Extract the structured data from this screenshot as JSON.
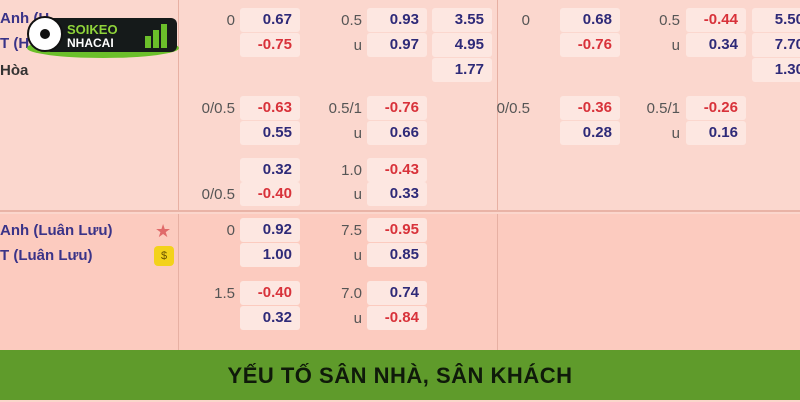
{
  "teams_top": {
    "home": "Anh (H",
    "away": "T (H",
    "draw": "Hòa"
  },
  "teams_bottom": {
    "home": "Anh (Luân Lưu)",
    "away": "T (Luân Lưu)"
  },
  "logo": {
    "text": "SOIKEO NHACAI .COM.CO"
  },
  "icons": {
    "favorite": "star-icon",
    "coin": "coin-icon"
  },
  "colors": {
    "positive": "#2e2a78",
    "negative": "#d8323a",
    "banner": "#5f9b2b"
  },
  "cells": [
    {
      "t": "l",
      "v": "0",
      "c": 1,
      "r": 0
    },
    {
      "t": "b",
      "v": "0.67",
      "c": 1,
      "r": 0
    },
    {
      "t": "l",
      "v": "0.5",
      "c": 2,
      "r": 0
    },
    {
      "t": "b",
      "v": "0.93",
      "c": 2,
      "r": 0
    },
    {
      "t": "b",
      "v": "3.55",
      "c": 3,
      "r": 0
    },
    {
      "t": "l",
      "v": "0",
      "c": 4,
      "r": 0
    },
    {
      "t": "b",
      "v": "0.68",
      "c": 4,
      "r": 0
    },
    {
      "t": "l",
      "v": "0.5",
      "c": 5,
      "r": 0
    },
    {
      "t": "b",
      "v": "-0.44",
      "c": 5,
      "r": 0
    },
    {
      "t": "b",
      "v": "5.50",
      "c": 6,
      "r": 0
    },
    {
      "t": "b",
      "v": "-0.75",
      "c": 1,
      "r": 1
    },
    {
      "t": "l",
      "v": "u",
      "c": 2,
      "r": 1
    },
    {
      "t": "b",
      "v": "0.97",
      "c": 2,
      "r": 1
    },
    {
      "t": "b",
      "v": "4.95",
      "c": 3,
      "r": 1
    },
    {
      "t": "b",
      "v": "-0.76",
      "c": 4,
      "r": 1
    },
    {
      "t": "l",
      "v": "u",
      "c": 5,
      "r": 1
    },
    {
      "t": "b",
      "v": "0.34",
      "c": 5,
      "r": 1
    },
    {
      "t": "b",
      "v": "7.70",
      "c": 6,
      "r": 1
    },
    {
      "t": "b",
      "v": "1.77",
      "c": 3,
      "r": 2
    },
    {
      "t": "b",
      "v": "1.30",
      "c": 6,
      "r": 2
    },
    {
      "t": "l",
      "v": "0/0.5",
      "c": 1,
      "r": 3
    },
    {
      "t": "b",
      "v": "-0.63",
      "c": 1,
      "r": 3
    },
    {
      "t": "l",
      "v": "0.5/1",
      "c": 2,
      "r": 3
    },
    {
      "t": "b",
      "v": "-0.76",
      "c": 2,
      "r": 3
    },
    {
      "t": "l",
      "v": "0/0.5",
      "c": 4,
      "r": 3
    },
    {
      "t": "b",
      "v": "-0.36",
      "c": 4,
      "r": 3
    },
    {
      "t": "l",
      "v": "0.5/1",
      "c": 5,
      "r": 3
    },
    {
      "t": "b",
      "v": "-0.26",
      "c": 5,
      "r": 3
    },
    {
      "t": "b",
      "v": "0.55",
      "c": 1,
      "r": 4
    },
    {
      "t": "l",
      "v": "u",
      "c": 2,
      "r": 4
    },
    {
      "t": "b",
      "v": "0.66",
      "c": 2,
      "r": 4
    },
    {
      "t": "b",
      "v": "0.28",
      "c": 4,
      "r": 4
    },
    {
      "t": "l",
      "v": "u",
      "c": 5,
      "r": 4
    },
    {
      "t": "b",
      "v": "0.16",
      "c": 5,
      "r": 4
    },
    {
      "t": "b",
      "v": "0.32",
      "c": 1,
      "r": 5
    },
    {
      "t": "l",
      "v": "1.0",
      "c": 2,
      "r": 5
    },
    {
      "t": "b",
      "v": "-0.43",
      "c": 2,
      "r": 5
    },
    {
      "t": "l",
      "v": "0/0.5",
      "c": 1,
      "r": 6
    },
    {
      "t": "b",
      "v": "-0.40",
      "c": 1,
      "r": 6
    },
    {
      "t": "l",
      "v": "u",
      "c": 2,
      "r": 6
    },
    {
      "t": "b",
      "v": "0.33",
      "c": 2,
      "r": 6
    },
    {
      "t": "l",
      "v": "0",
      "c": 1,
      "r": 7
    },
    {
      "t": "b",
      "v": "0.92",
      "c": 1,
      "r": 7
    },
    {
      "t": "l",
      "v": "7.5",
      "c": 2,
      "r": 7
    },
    {
      "t": "b",
      "v": "-0.95",
      "c": 2,
      "r": 7
    },
    {
      "t": "b",
      "v": "1.00",
      "c": 1,
      "r": 8
    },
    {
      "t": "l",
      "v": "u",
      "c": 2,
      "r": 8
    },
    {
      "t": "b",
      "v": "0.85",
      "c": 2,
      "r": 8
    },
    {
      "t": "l",
      "v": "1.5",
      "c": 1,
      "r": 9
    },
    {
      "t": "b",
      "v": "-0.40",
      "c": 1,
      "r": 9
    },
    {
      "t": "l",
      "v": "7.0",
      "c": 2,
      "r": 9
    },
    {
      "t": "b",
      "v": "0.74",
      "c": 2,
      "r": 9
    },
    {
      "t": "b",
      "v": "0.32",
      "c": 1,
      "r": 10
    },
    {
      "t": "l",
      "v": "u",
      "c": 2,
      "r": 10
    },
    {
      "t": "b",
      "v": "-0.84",
      "c": 2,
      "r": 10
    }
  ],
  "banner": {
    "title": "YẾU TỐ SÂN NHÀ, SÂN KHÁCH"
  }
}
